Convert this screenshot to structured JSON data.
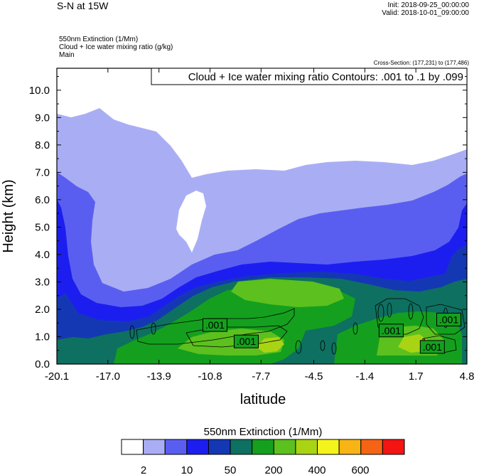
{
  "header": {
    "title": "S-N at 15W",
    "init": "Init: 2018-09-25_00:00:00",
    "valid": "Valid: 2018-10-01_09:00:00",
    "field1": "550nm Extinction   (1/Mm)",
    "field2": "Cloud + Ice water mixing ratio   (g/kg)",
    "field3": "Main",
    "cross_section": "Cross-Section: (177,231) to (177,486)"
  },
  "chart_data": {
    "type": "contour",
    "contour_title": "Cloud + Ice water mixing ratio Contours: .001 to .1 by .099",
    "xlabel": "latitude",
    "ylabel": "Height (km)",
    "xlim": [
      -20.1,
      4.8
    ],
    "ylim": [
      0.0,
      10.8
    ],
    "x_ticks": [
      "-20.1",
      "-17.0",
      "-13.9",
      "-10.8",
      "-7.7",
      "-4.5",
      "-1.4",
      "1.7",
      "4.8"
    ],
    "y_ticks": [
      "0.0",
      "1.0",
      "2.0",
      "3.0",
      "4.0",
      "5.0",
      "6.0",
      "7.0",
      "8.0",
      "9.0",
      "10.0"
    ],
    "contour_labels": [
      {
        "text": ".001",
        "lat": -10.5,
        "height": 1.4
      },
      {
        "text": ".001",
        "lat": -8.6,
        "height": 0.8
      },
      {
        "text": ".001",
        "lat": 0.2,
        "height": 1.2
      },
      {
        "text": ".001",
        "lat": 3.7,
        "height": 1.6
      },
      {
        "text": ".001",
        "lat": 2.7,
        "height": 0.6
      }
    ],
    "colorbar": {
      "title": "550nm Extinction  (1/Mm)",
      "colors": [
        "#ffffff",
        "#a9aef4",
        "#5a5ef0",
        "#1c1ef0",
        "#1438b4",
        "#0e7060",
        "#14a01e",
        "#5cc01e",
        "#a8d414",
        "#f4f41c",
        "#f8b414",
        "#f46414",
        "#f41414"
      ],
      "tick_labels": [
        "2",
        "10",
        "50",
        "200",
        "400",
        "600"
      ]
    }
  }
}
